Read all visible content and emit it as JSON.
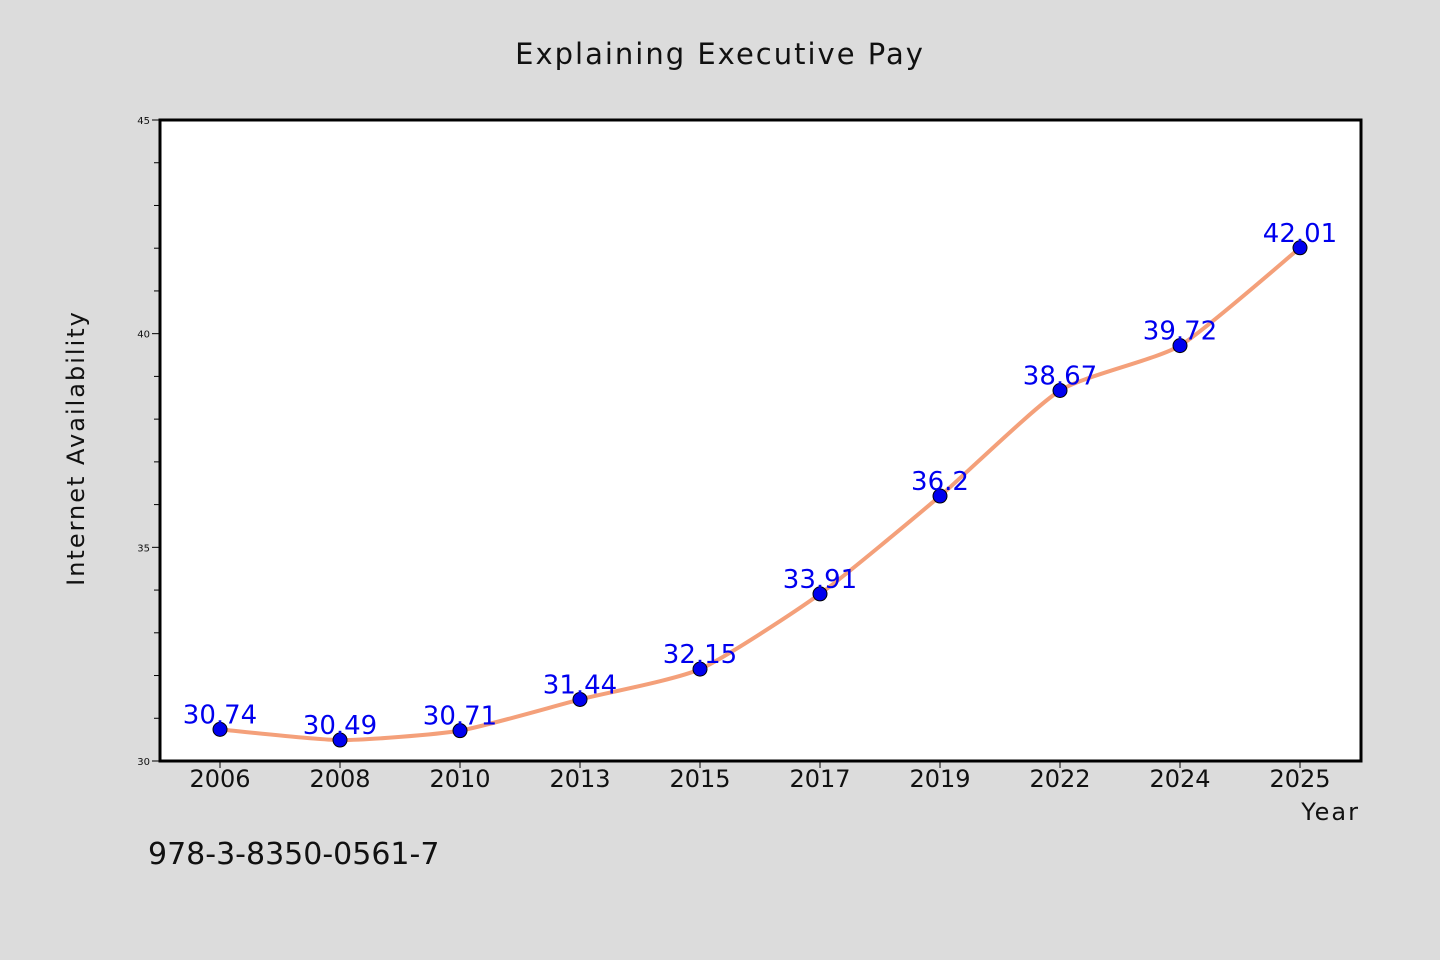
{
  "chart_data": {
    "type": "line",
    "title": "Explaining Executive Pay",
    "xlabel": "Year",
    "ylabel": "Internet Availability",
    "categories": [
      "2006",
      "2008",
      "2010",
      "2013",
      "2015",
      "2017",
      "2019",
      "2022",
      "2024",
      "2025"
    ],
    "series": [
      {
        "values": [
          30.74,
          30.49,
          30.71,
          31.44,
          32.15,
          33.91,
          36.2,
          38.67,
          39.72,
          42.01
        ],
        "data_labels": [
          "30.74",
          "30.49",
          "30.71",
          "31.44",
          "32.15",
          "33.91",
          "36.2",
          "38.67",
          "39.72",
          "42.01"
        ],
        "line_color": "#f4a07a",
        "marker_color": "#0000ee"
      }
    ],
    "ylim": [
      30,
      45
    ],
    "y_ticks": [
      "30",
      "35",
      "40",
      "45"
    ],
    "grid": false,
    "legend": "none"
  },
  "footer_text": "978-3-8350-0561-7",
  "colors": {
    "background": "#dcdcdc",
    "plot_background": "#ffffff",
    "label_color": "#0000ee"
  }
}
